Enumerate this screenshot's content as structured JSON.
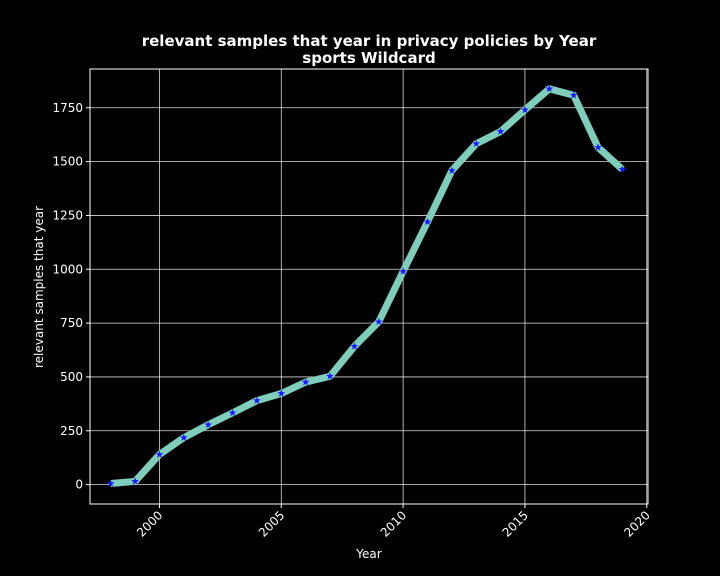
{
  "chart_data": {
    "type": "line",
    "title_line1": "relevant samples that year in privacy policies by Year",
    "title_line2": "sports Wildcard",
    "xlabel": "Year",
    "ylabel": "relevant samples that year",
    "xlim": [
      1997.15,
      2020.05
    ],
    "ylim": [
      -90,
      1930
    ],
    "xticks": [
      2000,
      2005,
      2010,
      2015,
      2020
    ],
    "yticks": [
      0,
      250,
      500,
      750,
      1000,
      1250,
      1500,
      1750
    ],
    "grid": true,
    "line_color": "#7fcdbb",
    "marker_color": "#1a1aff",
    "background_color": "#000000",
    "series": [
      {
        "x": [
          1998,
          1999,
          2000,
          2001,
          2002,
          2003,
          2004,
          2005,
          2006,
          2007,
          2008,
          2009,
          2010,
          2011,
          2012,
          2013,
          2014,
          2015,
          2016,
          2017,
          2018,
          2019
        ],
        "y": [
          5,
          15,
          140,
          218,
          278,
          333,
          390,
          423,
          476,
          503,
          642,
          756,
          990,
          1220,
          1458,
          1583,
          1640,
          1740,
          1838,
          1808,
          1566,
          1464
        ]
      }
    ]
  }
}
